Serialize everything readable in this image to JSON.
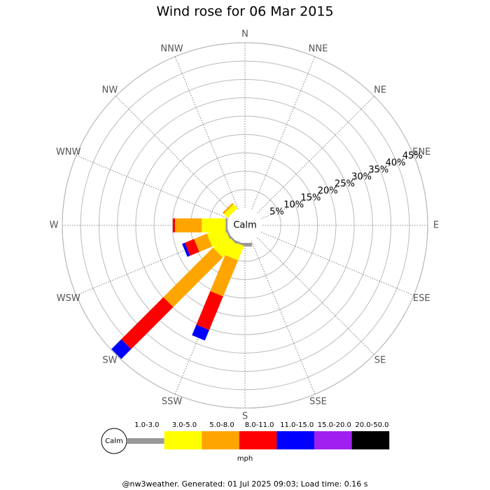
{
  "chart_data": {
    "type": "windrose",
    "title": "Wind rose for 06 Mar 2015",
    "categories": [
      "N",
      "NNE",
      "NE",
      "ENE",
      "E",
      "ESE",
      "SE",
      "SSE",
      "S",
      "SSW",
      "SW",
      "WSW",
      "W",
      "WNW",
      "NW",
      "NNW"
    ],
    "calm_label": "Calm",
    "unit_label": "mph",
    "rlim": [
      0,
      45
    ],
    "rticks": [
      {
        "value": 5,
        "label": "5%"
      },
      {
        "value": 10,
        "label": "10%"
      },
      {
        "value": 15,
        "label": "15%"
      },
      {
        "value": 20,
        "label": "20%"
      },
      {
        "value": 25,
        "label": "25%"
      },
      {
        "value": 30,
        "label": "30%"
      },
      {
        "value": 35,
        "label": "35%"
      },
      {
        "value": 40,
        "label": "40%"
      },
      {
        "value": 45,
        "label": "45%"
      }
    ],
    "series": [
      {
        "name": "1.0-3.0",
        "color": "#999999",
        "values": [
          0,
          0,
          0,
          0,
          0,
          0,
          0,
          0,
          1,
          0.5,
          0.5,
          0.5,
          0.5,
          0,
          0,
          0
        ]
      },
      {
        "name": "3.0-5.0",
        "color": "#ffff00",
        "values": [
          0,
          0,
          0,
          0,
          0,
          0,
          0,
          0,
          0,
          4.3,
          5.2,
          5.2,
          6.5,
          0,
          1.5,
          0
        ]
      },
      {
        "name": "5.0-8.0",
        "color": "#ffa500",
        "values": [
          0,
          0,
          0,
          0,
          0,
          0,
          0,
          0,
          0,
          10.6,
          19.1,
          3.8,
          7.3,
          0,
          0.5,
          0
        ]
      },
      {
        "name": "8.0-11.0",
        "color": "#ff0000",
        "values": [
          0,
          0,
          0,
          0,
          0,
          0,
          0,
          0,
          0,
          9.9,
          16.2,
          2.7,
          0.6,
          0,
          0,
          0
        ]
      },
      {
        "name": "11.0-15.0",
        "color": "#0000ff",
        "values": [
          0,
          0,
          0,
          0,
          0,
          0,
          0,
          0,
          0,
          3.1,
          3.8,
          0.8,
          0,
          0,
          0,
          0
        ]
      },
      {
        "name": "15.0-20.0",
        "color": "#a020f0",
        "values": [
          0,
          0,
          0,
          0,
          0,
          0,
          0,
          0,
          0,
          0,
          0,
          0,
          0,
          0,
          0,
          0
        ]
      },
      {
        "name": "20.0-50.0",
        "color": "#000000",
        "values": [
          0,
          0,
          0,
          0,
          0,
          0,
          0,
          0,
          0,
          0,
          0,
          0,
          0,
          0,
          0,
          0
        ]
      }
    ],
    "footer": "@nw3weather. Generated: 01 Jul 2025 09:03; Load time: 0.16 s"
  }
}
